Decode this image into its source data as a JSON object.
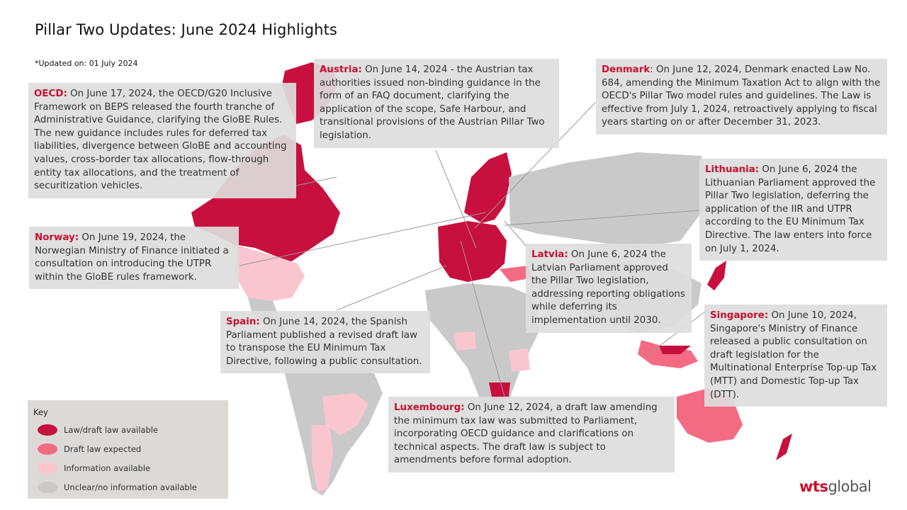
{
  "title": "Pillar Two Updates: June 2024 Highlights",
  "updated": "*Updated on: 01 July 2024",
  "callouts": {
    "oecd": {
      "heading": "OECD:",
      "text": " On June 17, 2024, the OECD/G20 Inclusive Framework on BEPS released the fourth tranche of Administrative Guidance, clarifying the GloBE Rules. The new guidance includes rules for deferred tax liabilities, divergence between GloBE and accounting values, cross-border tax allocations, flow-through entity tax allocations, and the treatment of securitization vehicles."
    },
    "norway": {
      "heading": "Norway:",
      "text": " On June 19, 2024, the Norwegian Ministry of Finance initiated a consultation on introducing the UTPR within the GloBE rules framework."
    },
    "austria": {
      "heading": "Austria:",
      "text": " On June 14, 2024 - the Austrian tax authorities issued non-binding guidance in the form of an FAQ document, clarifying the application of the scope, Safe Harbour, and transitional provisions of the Austrian Pillar Two legislation."
    },
    "denmark": {
      "heading": "Denmark",
      "text": ": On June 12, 2024, Denmark enacted Law No. 684, amending the Minimum Taxation Act to align with the OECD's Pillar Two model rules and guidelines. The Law is effective from July 1, 2024, retroactively applying to fiscal years starting on or after December 31, 2023."
    },
    "lithuania": {
      "heading": "Lithuania:",
      "text": " On June 6, 2024 the Lithuanian Parliament approved the Pillar Two legislation, deferring the application of the IIR and UTPR according to the EU Minimum Tax Directive. The law enters into force on July 1, 2024."
    },
    "latvia": {
      "heading": "Latvia:",
      "text": " On June 6, 2024 the Latvian Parliament approved the Pillar Two legislation, addressing reporting obligations while deferring its implementation until 2030."
    },
    "spain": {
      "heading": "Spain:",
      "text": " On June 14, 2024, the Spanish Parliament published a revised draft law to transpose the EU Minimum Tax Directive, following a public consultation."
    },
    "singapore": {
      "heading": "Singapore:",
      "text": " On June 10, 2024, Singapore's Ministry of Finance released a public consultation on draft legislation for the Multinational Enterprise Top-up Tax (MTT) and Domestic Top-up Tax (DTT)."
    },
    "luxembourg": {
      "heading": "Luxembourg:",
      "text": " On June 12, 2024, a draft law amending the minimum tax law was submitted to Parliament, incorporating OECD guidance and clarifications on technical aspects. The draft law is subject to amendments before formal adoption."
    }
  },
  "legend": {
    "title": "Key",
    "items": [
      {
        "label": "Law/draft law available",
        "color": "#c8103e"
      },
      {
        "label": "Draft law expected",
        "color": "#f36b82"
      },
      {
        "label": "Information available",
        "color": "#f9c6cf"
      },
      {
        "label": "Unclear/no information available",
        "color": "#c9c9c9"
      }
    ]
  },
  "logo": {
    "part1": "wts",
    "part2": "global"
  },
  "colors": {
    "accent": "#c8102e",
    "law_available": "#c8103e",
    "draft_expected": "#f36b82",
    "information_available": "#f9c6cf",
    "unclear": "#c9c9c9",
    "callout_background": "#dddddd",
    "legend_background": "#dcd9d6"
  }
}
